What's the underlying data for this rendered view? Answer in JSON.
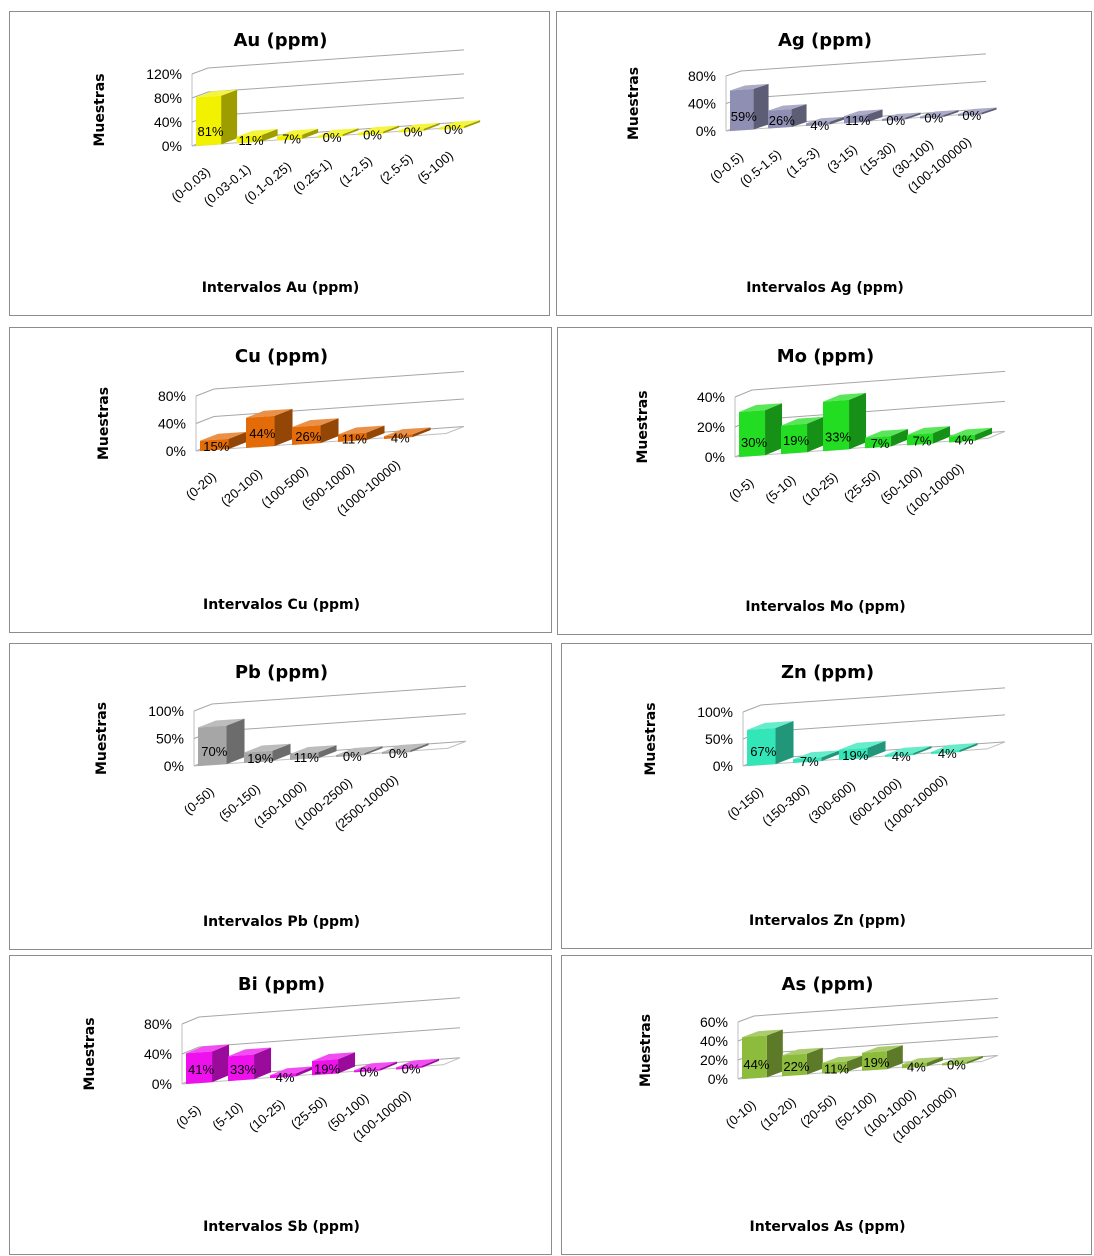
{
  "chart_data": [
    {
      "type": "bar",
      "title": "Au (ppm)",
      "xlabel": "Intervalos Au (ppm)",
      "ylabel": "Muestras",
      "color": "#f2f200",
      "categories": [
        "(0-0.03)",
        "(0.03-0.1)",
        "(0.1-0.25)",
        "(0.25-1)",
        "(1-2.5)",
        "(2.5-5)",
        "(5-100)"
      ],
      "values": [
        81,
        11,
        7,
        0,
        0,
        0,
        0
      ],
      "labels": [
        "81%",
        "11%",
        "7%",
        "0%",
        "0%",
        "0%",
        "0%"
      ],
      "yticks": [
        "0%",
        "40%",
        "80%",
        "120%"
      ],
      "ylim": [
        0,
        120
      ],
      "grid": true,
      "legend": "none"
    },
    {
      "type": "bar",
      "title": "Ag (ppm)",
      "xlabel": "Intervalos Ag (ppm)",
      "ylabel": "Muestras",
      "color": "#8f8fb4",
      "categories": [
        "(0-0.5)",
        "(0.5-1.5)",
        "(1.5-3)",
        "(3-15)",
        "(15-30)",
        "(30-100)",
        "(100-100000)"
      ],
      "values": [
        59,
        26,
        4,
        11,
        0,
        0,
        0
      ],
      "labels": [
        "59%",
        "26%",
        "4%",
        "11%",
        "0%",
        "0%",
        "0%"
      ],
      "yticks": [
        "0%",
        "40%",
        "80%"
      ],
      "ylim": [
        0,
        80
      ],
      "grid": true,
      "legend": "none"
    },
    {
      "type": "bar",
      "title": "Cu (ppm)",
      "xlabel": "Intervalos Cu (ppm)",
      "ylabel": "Muestras",
      "color": "#e36c09",
      "categories": [
        "(0-20)",
        "(20-100)",
        "(100-500)",
        "(500-1000)",
        "(1000-10000)"
      ],
      "values": [
        15,
        44,
        26,
        11,
        4
      ],
      "labels": [
        "15%",
        "44%",
        "26%",
        "11%",
        "4%"
      ],
      "yticks": [
        "0%",
        "40%",
        "80%"
      ],
      "ylim": [
        0,
        80
      ],
      "grid": true,
      "legend": "none"
    },
    {
      "type": "bar",
      "title": "Mo (ppm)",
      "xlabel": "Intervalos Mo (ppm)",
      "ylabel": "Muestras",
      "color": "#22dd22",
      "categories": [
        "(0-5)",
        "(5-10)",
        "(10-25)",
        "(25-50)",
        "(50-100)",
        "(100-10000)"
      ],
      "values": [
        30,
        19,
        33,
        7,
        7,
        4
      ],
      "labels": [
        "30%",
        "19%",
        "33%",
        "7%",
        "7%",
        "4%"
      ],
      "yticks": [
        "0%",
        "20%",
        "40%"
      ],
      "ylim": [
        0,
        40
      ],
      "grid": true,
      "legend": "none"
    },
    {
      "type": "bar",
      "title": "Pb (ppm)",
      "xlabel": "Intervalos Pb (ppm)",
      "ylabel": "Muestras",
      "color": "#a6a6a6",
      "categories": [
        "(0-50)",
        "(50-150)",
        "(150-1000)",
        "(1000-2500)",
        "(2500-10000)"
      ],
      "values": [
        70,
        19,
        11,
        0,
        0
      ],
      "labels": [
        "70%",
        "19%",
        "11%",
        "0%",
        "0%"
      ],
      "yticks": [
        "0%",
        "50%",
        "100%"
      ],
      "ylim": [
        0,
        100
      ],
      "grid": true,
      "legend": "none"
    },
    {
      "type": "bar",
      "title": "Zn (ppm)",
      "xlabel": "Intervalos Zn (ppm)",
      "ylabel": "Muestras",
      "color": "#33e6b8",
      "categories": [
        "(0-150)",
        "(150-300)",
        "(300-600)",
        "(600-1000)",
        "(1000-10000)"
      ],
      "values": [
        67,
        7,
        19,
        4,
        4
      ],
      "labels": [
        "67%",
        "7%",
        "19%",
        "4%",
        "4%"
      ],
      "yticks": [
        "0%",
        "50%",
        "100%"
      ],
      "ylim": [
        0,
        100
      ],
      "grid": true,
      "legend": "none"
    },
    {
      "type": "bar",
      "title": "Bi (ppm)",
      "xlabel": "Intervalos Sb (ppm)",
      "ylabel": "Muestras",
      "color": "#ee11ee",
      "categories": [
        "(0-5)",
        "(5-10)",
        "(10-25)",
        "(25-50)",
        "(50-100)",
        "(100-10000)"
      ],
      "values": [
        41,
        33,
        4,
        19,
        0,
        0
      ],
      "labels": [
        "41%",
        "33%",
        "4%",
        "19%",
        "0%",
        "0%"
      ],
      "yticks": [
        "0%",
        "40%",
        "80%"
      ],
      "ylim": [
        0,
        80
      ],
      "grid": true,
      "legend": "none"
    },
    {
      "type": "bar",
      "title": "As (ppm)",
      "xlabel": "Intervalos As (ppm)",
      "ylabel": "Muestras",
      "color": "#8dbb3c",
      "categories": [
        "(0-10)",
        "(10-20)",
        "(20-50)",
        "(50-100)",
        "(100-1000)",
        "(1000-10000)"
      ],
      "values": [
        44,
        22,
        11,
        19,
        4,
        0
      ],
      "labels": [
        "44%",
        "22%",
        "11%",
        "19%",
        "4%",
        "0%"
      ],
      "yticks": [
        "0%",
        "20%",
        "40%",
        "60%"
      ],
      "ylim": [
        0,
        60
      ],
      "grid": true,
      "legend": "none"
    }
  ]
}
